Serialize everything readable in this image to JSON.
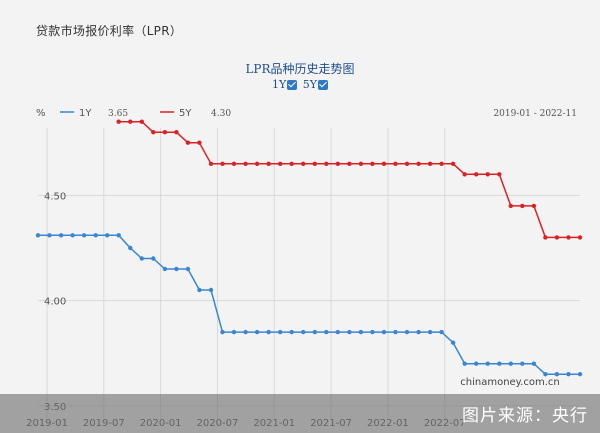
{
  "page": {
    "title": "贷款市场报价利率（LPR）"
  },
  "chart": {
    "title": "LPR品种历史走势图",
    "toggle_1y": "1Y",
    "toggle_5y": "5Y",
    "unit": "%",
    "legend_1y_value": "3.65",
    "legend_5y_value": "4.30",
    "date_range": "2019-01 - 2022-11",
    "source_label": "chinamoney.com.cn"
  },
  "watermark": {
    "text": "图片来源：央行"
  },
  "chart_data": {
    "type": "line",
    "x_tick_labels": [
      "2019-01",
      "2019-07",
      "2020-01",
      "2020-07",
      "2021-01",
      "2021-07",
      "2022-01",
      "2022-07"
    ],
    "y_tick_labels": [
      "3.50",
      "4.00",
      "4.50"
    ],
    "ylim": [
      3.48,
      4.82
    ],
    "colors": {
      "1y": "#3a87d1",
      "5y": "#d92226",
      "grid": "#d9d9d9"
    },
    "series": [
      {
        "name": "1Y",
        "values": [
          4.31,
          4.31,
          4.31,
          4.31,
          4.31,
          4.31,
          4.31,
          4.31,
          4.25,
          4.2,
          4.2,
          4.15,
          4.15,
          4.15,
          4.05,
          4.05,
          3.85,
          3.85,
          3.85,
          3.85,
          3.85,
          3.85,
          3.85,
          3.85,
          3.85,
          3.85,
          3.85,
          3.85,
          3.85,
          3.85,
          3.85,
          3.85,
          3.85,
          3.85,
          3.85,
          3.85,
          3.8,
          3.7,
          3.7,
          3.7,
          3.7,
          3.7,
          3.7,
          3.7,
          3.65,
          3.65,
          3.65,
          3.65
        ]
      },
      {
        "name": "5Y",
        "values": [
          null,
          null,
          null,
          null,
          null,
          null,
          null,
          4.85,
          4.85,
          4.85,
          4.8,
          4.8,
          4.8,
          4.75,
          4.75,
          4.65,
          4.65,
          4.65,
          4.65,
          4.65,
          4.65,
          4.65,
          4.65,
          4.65,
          4.65,
          4.65,
          4.65,
          4.65,
          4.65,
          4.65,
          4.65,
          4.65,
          4.65,
          4.65,
          4.65,
          4.65,
          4.65,
          4.6,
          4.6,
          4.6,
          4.6,
          4.45,
          4.45,
          4.45,
          4.3,
          4.3,
          4.3,
          4.3
        ]
      }
    ],
    "grid": true
  }
}
